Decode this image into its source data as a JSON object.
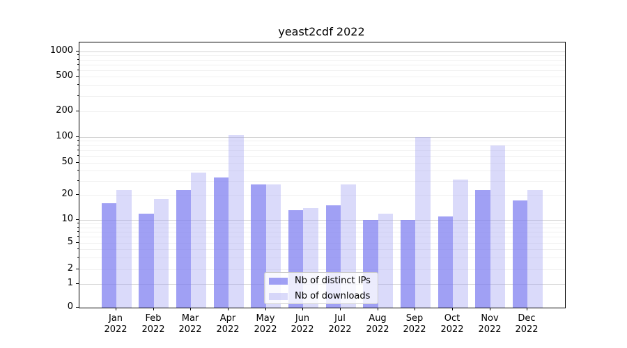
{
  "figure": {
    "background": "#ffffff"
  },
  "chart_data": {
    "type": "bar",
    "title": "yeast2cdf 2022",
    "categories": [
      "Jan 2022",
      "Feb 2022",
      "Mar 2022",
      "Apr 2022",
      "May 2022",
      "Jun 2022",
      "Jul 2022",
      "Aug 2022",
      "Sep 2022",
      "Oct 2022",
      "Nov 2022",
      "Dec 2022"
    ],
    "series": [
      {
        "name": "Nb of distinct IPs",
        "values": [
          16,
          12,
          23,
          33,
          27,
          13,
          15,
          10,
          10,
          11,
          23,
          17
        ],
        "color": "rgba(124,124,240,0.72)"
      },
      {
        "name": "Nb of downloads",
        "values": [
          23,
          18,
          38,
          105,
          27,
          14,
          27,
          12,
          100,
          31,
          80,
          23
        ],
        "color": "rgba(158,158,243,0.38)"
      }
    ],
    "y_axis": {
      "scale": "symlog",
      "ticks": [
        0,
        1,
        2,
        5,
        10,
        20,
        50,
        100,
        200,
        500,
        1000
      ],
      "ylim": [
        0,
        1280
      ],
      "grid_major_at": [
        1,
        10,
        100,
        1000
      ]
    },
    "legend": {
      "location": "lower center",
      "labels": [
        "Nb of distinct IPs",
        "Nb of downloads"
      ]
    },
    "colors": {
      "grid_major": "#d3d3d3",
      "grid_minor": "#f0f0f0",
      "spine": "#000000",
      "text": "#000000"
    }
  }
}
